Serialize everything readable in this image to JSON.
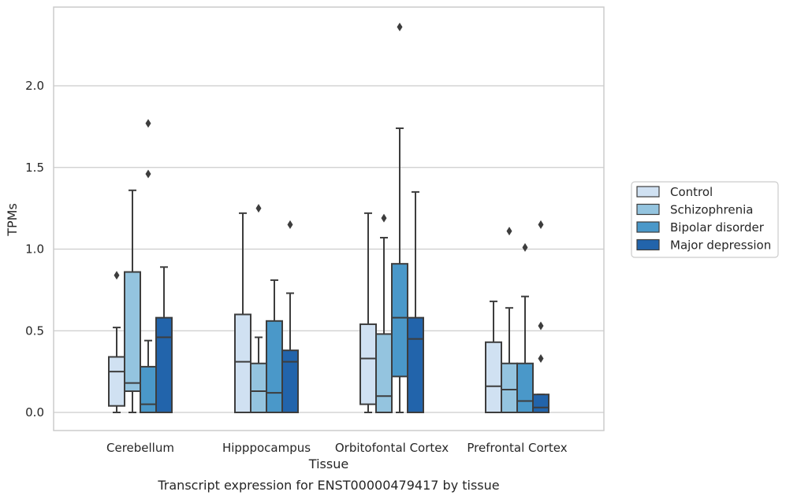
{
  "chart_data": {
    "type": "box",
    "xlabel": "Tissue",
    "ylabel": "TPMs",
    "caption": "Transcript expression for ENST00000479417 by tissue",
    "ylim": [
      -0.11,
      2.49
    ],
    "yticks": [
      0.0,
      0.5,
      1.0,
      1.5,
      2.0
    ],
    "ytick_labels": [
      "0.0",
      "0.5",
      "1.0",
      "1.5",
      "2.0"
    ],
    "grid": "horizontal",
    "legend_position": "right",
    "categories": [
      "Cerebellum",
      "Hipppocampus",
      "Orbitofontal Cortex",
      "Prefrontal Cortex"
    ],
    "series": [
      {
        "name": "Control",
        "color": "#d0e1f2",
        "boxes": [
          {
            "whislo": 0.0,
            "q1": 0.04,
            "med": 0.25,
            "q3": 0.34,
            "whishi": 0.52,
            "fliers": [
              0.84
            ]
          },
          {
            "whislo": 0.0,
            "q1": 0.0,
            "med": 0.31,
            "q3": 0.6,
            "whishi": 1.22,
            "fliers": []
          },
          {
            "whislo": 0.0,
            "q1": 0.05,
            "med": 0.33,
            "q3": 0.54,
            "whishi": 1.22,
            "fliers": []
          },
          {
            "whislo": 0.0,
            "q1": 0.0,
            "med": 0.16,
            "q3": 0.43,
            "whishi": 0.68,
            "fliers": []
          }
        ]
      },
      {
        "name": "Schizophrenia",
        "color": "#94c4df",
        "boxes": [
          {
            "whislo": 0.0,
            "q1": 0.13,
            "med": 0.18,
            "q3": 0.86,
            "whishi": 1.36,
            "fliers": []
          },
          {
            "whislo": 0.0,
            "q1": 0.0,
            "med": 0.13,
            "q3": 0.3,
            "whishi": 0.46,
            "fliers": [
              1.25
            ]
          },
          {
            "whislo": 0.0,
            "q1": 0.0,
            "med": 0.1,
            "q3": 0.48,
            "whishi": 1.07,
            "fliers": [
              1.19
            ]
          },
          {
            "whislo": 0.0,
            "q1": 0.0,
            "med": 0.14,
            "q3": 0.3,
            "whishi": 0.64,
            "fliers": [
              1.11
            ]
          }
        ]
      },
      {
        "name": "Bipolar disorder",
        "color": "#4a98c9",
        "boxes": [
          {
            "whislo": 0.0,
            "q1": 0.0,
            "med": 0.05,
            "q3": 0.28,
            "whishi": 0.44,
            "fliers": [
              1.46,
              1.77
            ]
          },
          {
            "whislo": 0.0,
            "q1": 0.0,
            "med": 0.12,
            "q3": 0.56,
            "whishi": 0.81,
            "fliers": []
          },
          {
            "whislo": 0.0,
            "q1": 0.22,
            "med": 0.58,
            "q3": 0.91,
            "whishi": 1.74,
            "fliers": [
              2.36
            ]
          },
          {
            "whislo": 0.0,
            "q1": 0.0,
            "med": 0.07,
            "q3": 0.3,
            "whishi": 0.71,
            "fliers": [
              1.01
            ]
          }
        ]
      },
      {
        "name": "Major depression",
        "color": "#2264ab",
        "boxes": [
          {
            "whislo": 0.0,
            "q1": 0.0,
            "med": 0.46,
            "q3": 0.58,
            "whishi": 0.89,
            "fliers": []
          },
          {
            "whislo": 0.0,
            "q1": 0.0,
            "med": 0.31,
            "q3": 0.38,
            "whishi": 0.73,
            "fliers": [
              1.15
            ]
          },
          {
            "whislo": 0.0,
            "q1": 0.0,
            "med": 0.45,
            "q3": 0.58,
            "whishi": 1.35,
            "fliers": []
          },
          {
            "whislo": 0.0,
            "q1": 0.0,
            "med": 0.03,
            "q3": 0.11,
            "whishi": 0.11,
            "fliers": [
              0.33,
              0.53,
              1.15
            ]
          }
        ]
      }
    ]
  }
}
